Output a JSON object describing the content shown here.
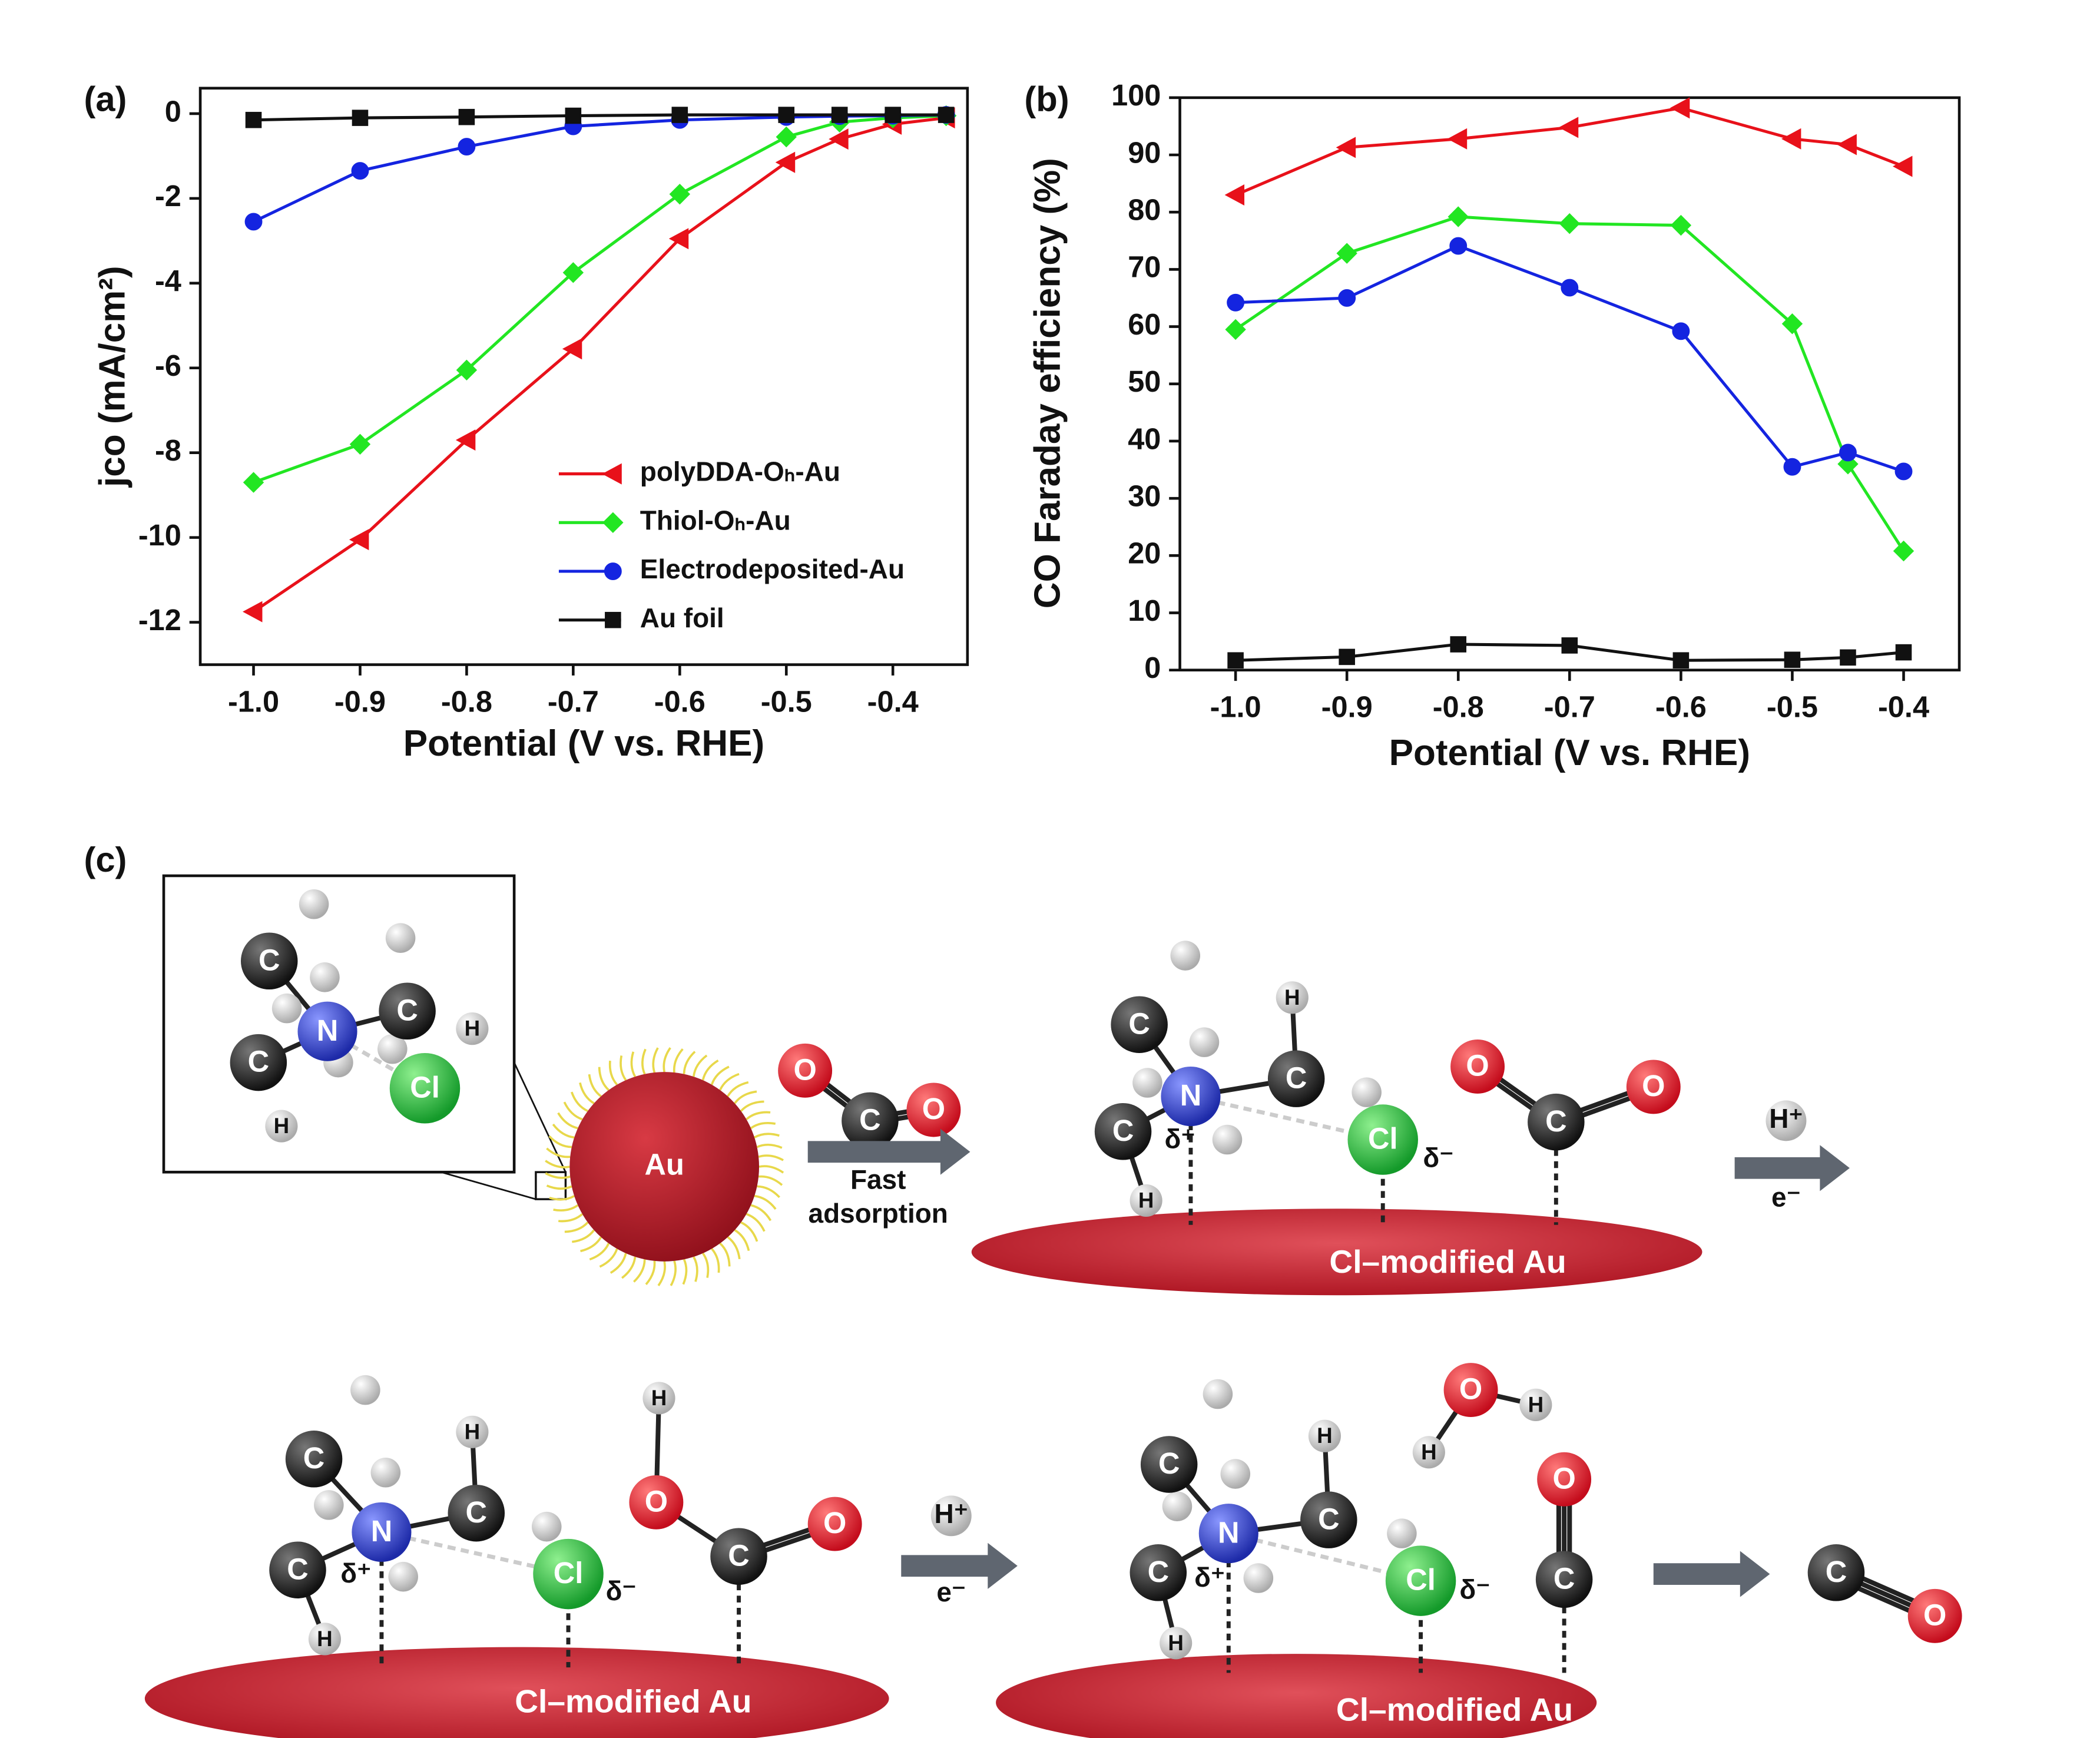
{
  "chart_data": [
    {
      "type": "line",
      "title": "(a)",
      "xlabel": "Potential (V vs. RHE)",
      "ylabel": "jco (mA/cm²)",
      "x": [
        -1.0,
        -0.9,
        -0.8,
        -0.7,
        -0.6,
        -0.5,
        -0.45,
        -0.4,
        -0.35
      ],
      "series": [
        {
          "name": "polyDDA-Oₕ-Au",
          "color": "#e8111a",
          "marker": "triangle-left",
          "values": [
            -11.75,
            -10.05,
            -7.7,
            -5.55,
            -2.95,
            -1.15,
            -0.6,
            -0.25,
            -0.1
          ]
        },
        {
          "name": "Thiol-Oₕ-Au",
          "color": "#22e622",
          "marker": "diamond",
          "values": [
            -8.7,
            -7.8,
            -6.05,
            -3.75,
            -1.9,
            -0.55,
            -0.2,
            -0.1,
            -0.05
          ]
        },
        {
          "name": "Electrodeposited-Au",
          "color": "#1424e0",
          "marker": "circle",
          "values": [
            -2.55,
            -1.35,
            -0.78,
            -0.3,
            -0.15,
            -0.08,
            -0.06,
            -0.05,
            -0.03
          ]
        },
        {
          "name": "Au foil",
          "color": "#111111",
          "marker": "square",
          "values": [
            -0.15,
            -0.1,
            -0.08,
            -0.05,
            -0.03,
            -0.03,
            -0.03,
            -0.03,
            -0.03
          ]
        }
      ],
      "xlim": [
        -1.05,
        -0.33
      ],
      "xticks": [
        {
          "value": -1.0,
          "label": "-1.0"
        },
        -0.9,
        -0.8,
        -0.7,
        -0.6,
        -0.5,
        -0.4
      ],
      "ylim": [
        -13,
        0.6
      ],
      "yticks": [
        0,
        -2,
        -4,
        -6,
        -8,
        -10,
        -12
      ],
      "legend": "lower right"
    },
    {
      "type": "line",
      "title": "(b)",
      "xlabel": "Potential (V vs. RHE)",
      "ylabel": "CO Faraday efficiency (%)",
      "x": [
        -1.0,
        -0.9,
        -0.8,
        -0.7,
        -0.6,
        -0.5,
        -0.45,
        -0.4
      ],
      "series": [
        {
          "color": "#e8111a",
          "marker": "triangle-left",
          "values": [
            83,
            91.3,
            92.8,
            94.8,
            98.2,
            92.8,
            91.8,
            88
          ]
        },
        {
          "color": "#22e622",
          "marker": "diamond",
          "values": [
            59.5,
            72.8,
            79.2,
            78,
            77.7,
            60.5,
            36,
            20.8
          ]
        },
        {
          "color": "#1424e0",
          "marker": "circle",
          "values": [
            64.2,
            65,
            74.1,
            66.8,
            59.2,
            35.5,
            38,
            34.7
          ]
        },
        {
          "color": "#111111",
          "marker": "square",
          "values": [
            1.7,
            2.3,
            4.5,
            4.3,
            1.7,
            1.8,
            2.2,
            3.1
          ]
        }
      ],
      "xlim": [
        -1.05,
        -0.35
      ],
      "xticks": [
        {
          "value": -1.0,
          "label": "-1.0"
        },
        -0.9,
        -0.8,
        -0.7,
        -0.6,
        -0.5,
        -0.4
      ],
      "ylim": [
        0,
        100
      ],
      "yticks": [
        0,
        10,
        20,
        30,
        40,
        50,
        60,
        70,
        80,
        90,
        100
      ]
    }
  ],
  "diagram": {
    "label": "(c)",
    "particle": "Au",
    "scenes": [
      {
        "atoms": [
          "C",
          "N",
          "C",
          "C",
          "H",
          "Cl",
          "H"
        ]
      },
      {
        "atoms": [
          "O",
          "C",
          "O"
        ]
      },
      {
        "atoms": [
          "C",
          "N",
          "C",
          "H",
          "C",
          "H",
          "Cl",
          "O",
          "C",
          "O"
        ],
        "charges": [
          "δ⁺",
          "δ⁻"
        ],
        "surface": "Cl–modified Au"
      },
      {
        "atoms": [
          "C",
          "N",
          "C",
          "H",
          "C",
          "H",
          "Cl",
          "O",
          "H",
          "C",
          "O"
        ],
        "charges": [
          "δ⁺",
          "δ⁻"
        ],
        "surface": "Cl–modified Au"
      },
      {
        "atoms": [
          "C",
          "N",
          "C",
          "H",
          "C",
          "H",
          "Cl",
          "O",
          "H",
          "H",
          "O",
          "C"
        ],
        "charges": [
          "δ⁺",
          "δ⁻"
        ],
        "surface": "Cl–modified Au"
      },
      {
        "atoms": [
          "C",
          "O"
        ]
      }
    ],
    "steps": [
      {
        "top": "Fast",
        "bottom": "adsorption"
      },
      {
        "top": "H⁺",
        "bottom": "e⁻"
      },
      {
        "top": "H⁺",
        "bottom": "e⁻"
      }
    ]
  }
}
